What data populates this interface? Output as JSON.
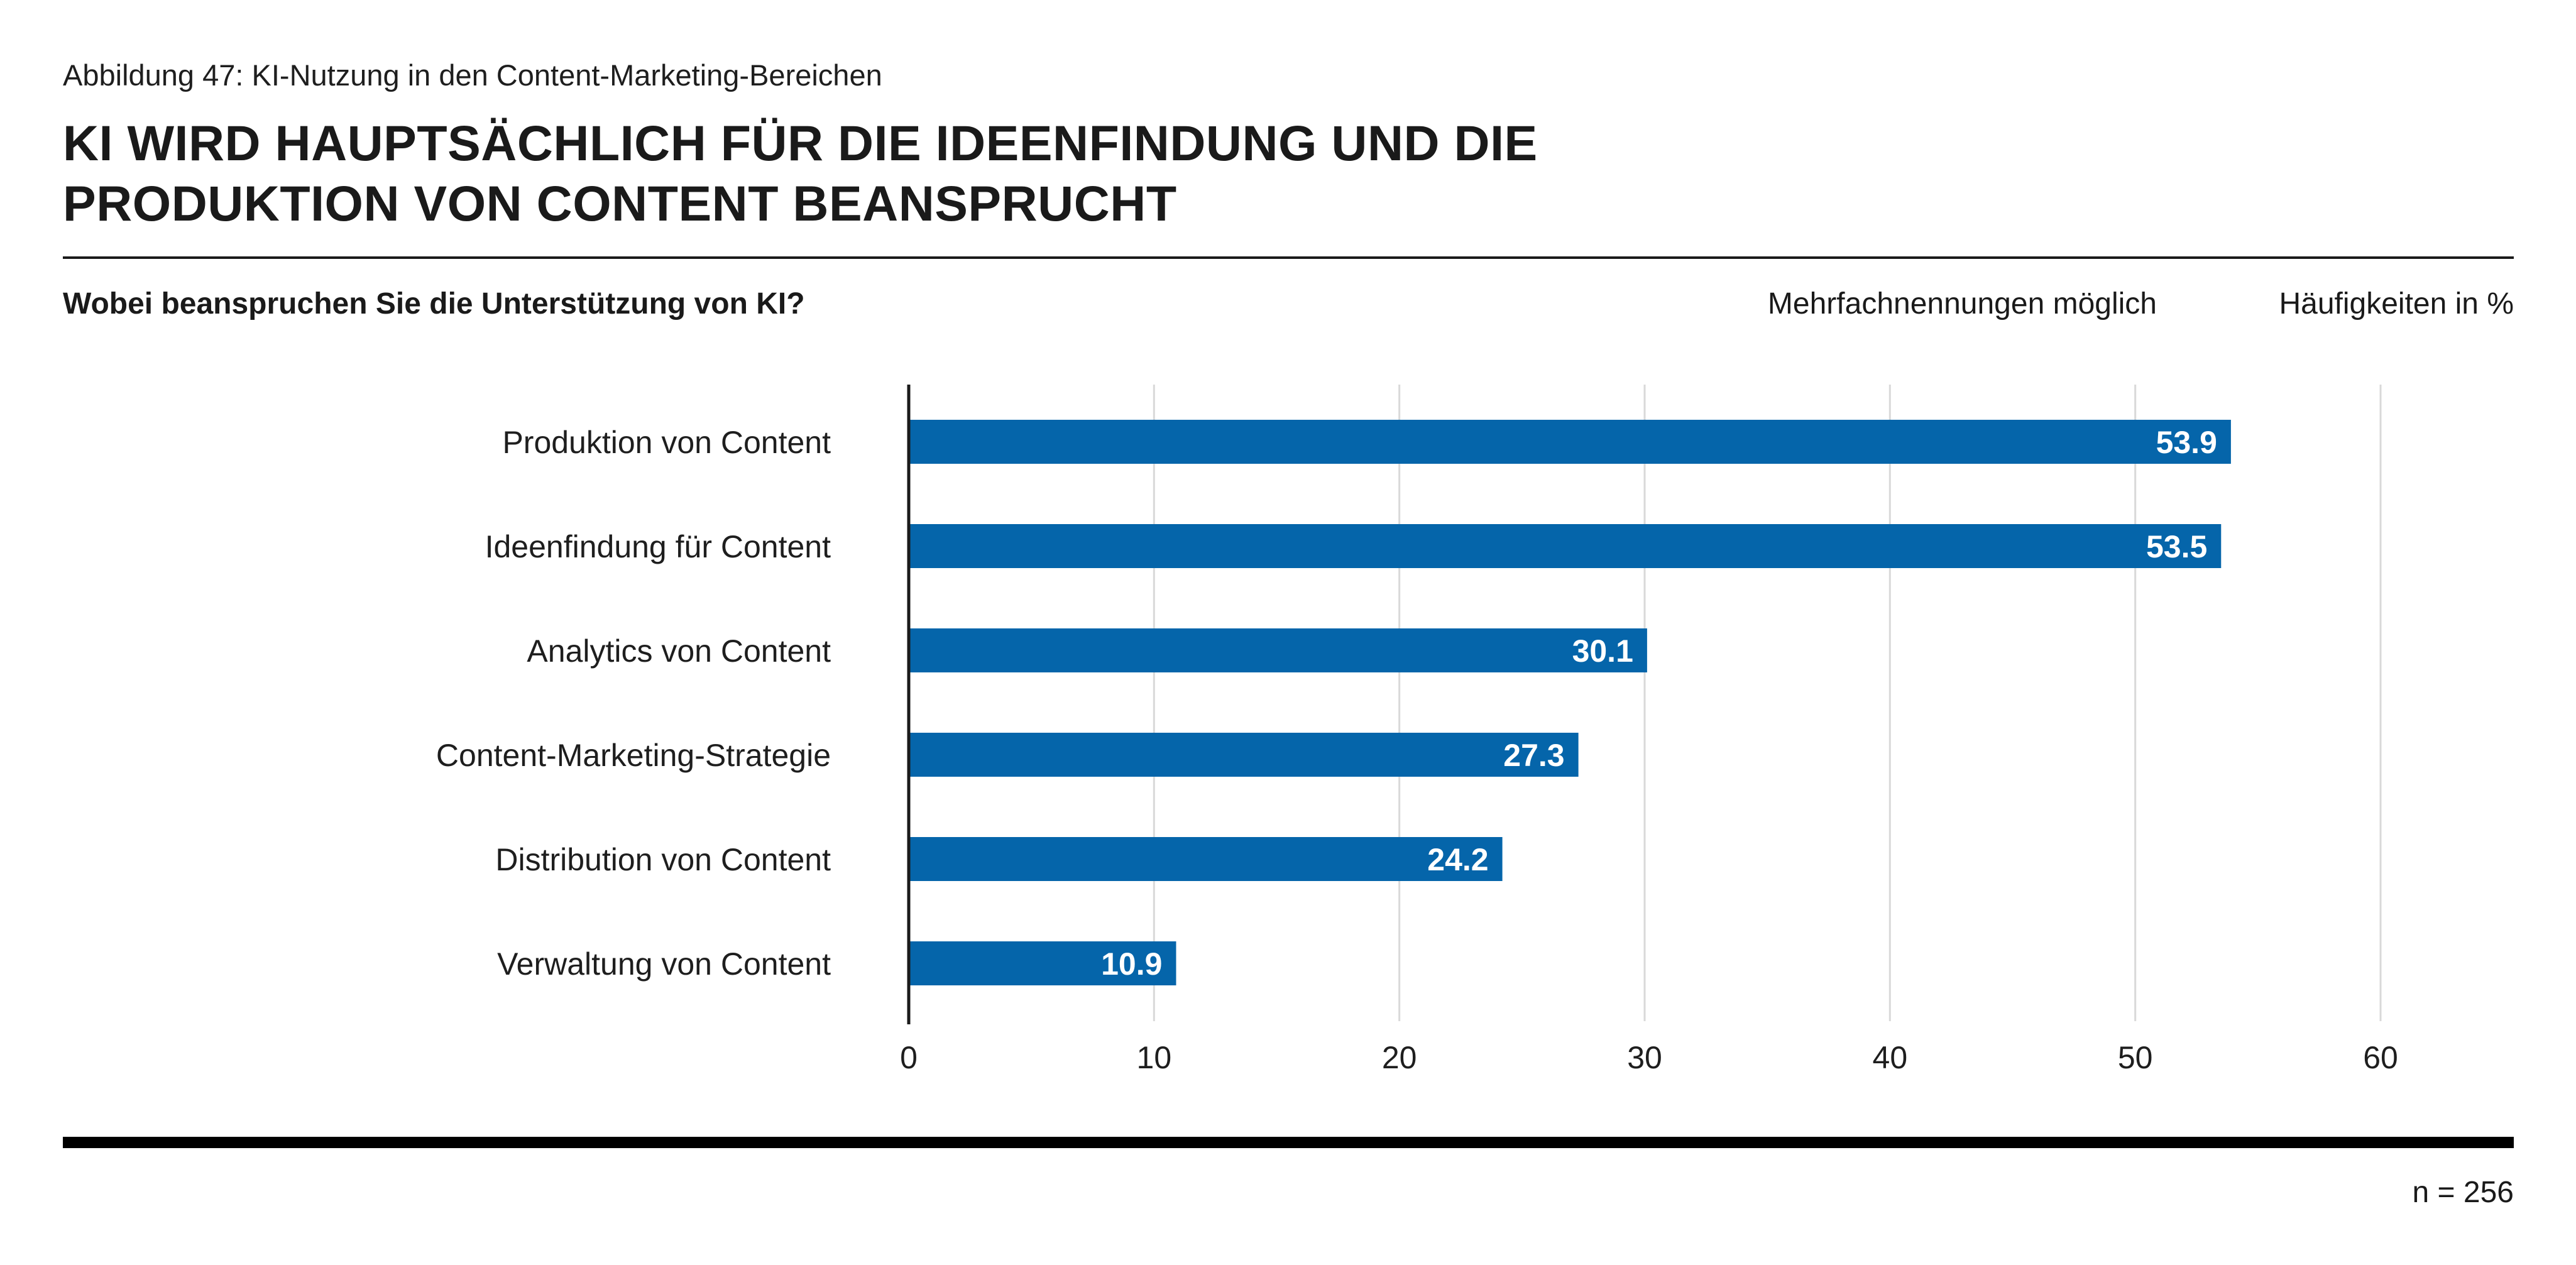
{
  "figure": {
    "label": "Abbildung 47: KI-Nutzung in den Content-Marketing-Bereichen",
    "headline_line1": "KI WIRD HAUPTSÄCHLICH FÜR DIE IDEENFINDUNG UND DIE",
    "headline_line2": "PRODUKTION VON CONTENT BEANSPRUCHT",
    "question": "Wobei beanspruchen Sie die Unterstützung von KI?",
    "note": "Mehrfachnennungen möglich",
    "unit": "Häufigkeiten in %",
    "sample": "n = 256"
  },
  "colors": {
    "bar": "#0565aa",
    "bar_label": "#ffffff",
    "grid": "#d9d9d9",
    "axis": "#1a1a1a"
  },
  "chart_data": {
    "type": "bar",
    "orientation": "horizontal",
    "categories": [
      "Produktion von Content",
      "Ideenfindung für Content",
      "Analytics von Content",
      "Content-Marketing-Strategie",
      "Distribution von Content",
      "Verwaltung von Content"
    ],
    "values": [
      53.9,
      53.5,
      30.1,
      27.3,
      24.2,
      10.9
    ],
    "value_labels": [
      "53.9",
      "53.5",
      "30.1",
      "27.3",
      "24.2",
      "10.9"
    ],
    "xlim": [
      0,
      60
    ],
    "xticks": [
      0,
      10,
      20,
      30,
      40,
      50,
      60
    ],
    "xtick_labels": [
      "0",
      "10",
      "20",
      "30",
      "40",
      "50",
      "60"
    ],
    "grid": true,
    "legend": "none"
  }
}
